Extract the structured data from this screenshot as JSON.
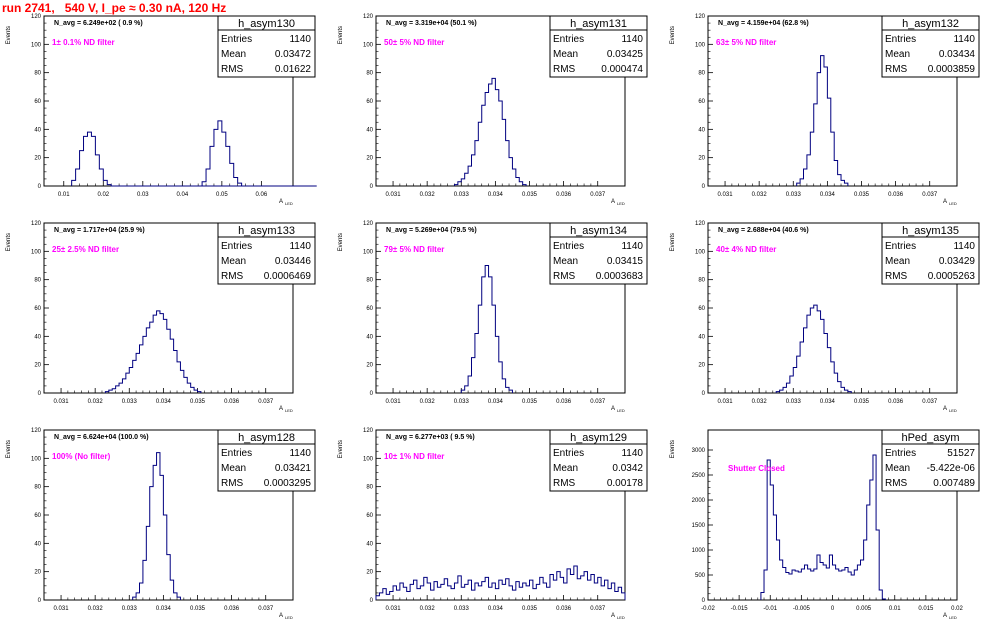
{
  "page": {
    "title": "run 2741,   540 V, I_pe ≈ 0.30 nA, 120 Hz",
    "colors": {
      "title": "#ff0000",
      "histogram": "#000080",
      "annotation": "#ff00ff",
      "frame": "#000000"
    },
    "y_axis_label": "Events",
    "x_axis_label": "A",
    "x_axis_label_sub": "LED",
    "stats_labels": {
      "entries": "Entries",
      "mean": "Mean",
      "rms": "RMS"
    }
  },
  "chart_data": [
    {
      "type": "histogram",
      "name": "h_asym130",
      "navg": "N_avg = 6.249e+02 ( 0.9 %)",
      "note": "1± 0.1% ND filter",
      "entries": "1140",
      "mean": "0.03472",
      "rms": "0.01622",
      "xlim": [
        0.005,
        0.068
      ],
      "ylim": [
        0,
        120
      ],
      "xticks": [
        {
          "v": 0.01,
          "t": "0.01"
        },
        {
          "v": 0.02,
          "t": "0.02"
        },
        {
          "v": 0.03,
          "t": "0.03"
        },
        {
          "v": 0.04,
          "t": "0.04"
        },
        {
          "v": 0.05,
          "t": "0.05"
        },
        {
          "v": 0.06,
          "t": "0.06"
        }
      ],
      "yticks": [
        {
          "v": 0,
          "t": "0"
        },
        {
          "v": 20,
          "t": "20"
        },
        {
          "v": 40,
          "t": "40"
        },
        {
          "v": 60,
          "t": "60"
        },
        {
          "v": 80,
          "t": "80"
        },
        {
          "v": 100,
          "t": "100"
        },
        {
          "v": 120,
          "t": "120"
        }
      ],
      "bin_start": 0.012,
      "bin_width": 0.001,
      "counts": [
        4,
        12,
        25,
        35,
        38,
        35,
        22,
        12,
        4,
        1,
        0,
        0,
        0,
        0,
        0,
        0,
        0,
        0,
        0,
        0,
        0,
        0,
        0,
        0,
        0,
        0,
        0,
        0,
        0,
        0,
        0,
        0,
        0,
        0,
        0,
        0,
        0,
        0,
        0,
        0,
        0,
        0,
        0,
        0,
        0,
        0,
        0,
        0,
        0,
        0,
        0,
        0,
        0,
        0,
        0,
        0,
        0,
        0,
        0,
        0,
        0,
        0
      ],
      "bins2_start": 0.045,
      "counts2": [
        3,
        12,
        28,
        40,
        46,
        38,
        28,
        16,
        6,
        2
      ]
    },
    {
      "type": "histogram",
      "name": "h_asym131",
      "navg": "N_avg = 3.319e+04 (50.1 %)",
      "note": "50± 5% ND filter",
      "entries": "1140",
      "mean": "0.03425",
      "rms": "0.000474",
      "xlim": [
        0.0305,
        0.0378
      ],
      "ylim": [
        0,
        120
      ],
      "xticks": [
        {
          "v": 0.031,
          "t": "0.031"
        },
        {
          "v": 0.032,
          "t": "0.032"
        },
        {
          "v": 0.033,
          "t": "0.033"
        },
        {
          "v": 0.034,
          "t": "0.034"
        },
        {
          "v": 0.035,
          "t": "0.035"
        },
        {
          "v": 0.036,
          "t": "0.036"
        },
        {
          "v": 0.037,
          "t": "0.037"
        }
      ],
      "yticks": [
        {
          "v": 0,
          "t": "0"
        },
        {
          "v": 20,
          "t": "20"
        },
        {
          "v": 40,
          "t": "40"
        },
        {
          "v": 60,
          "t": "60"
        },
        {
          "v": 80,
          "t": "80"
        },
        {
          "v": 100,
          "t": "100"
        },
        {
          "v": 120,
          "t": "120"
        }
      ],
      "bin_start": 0.0328,
      "bin_width": 0.0001,
      "counts": [
        1,
        3,
        5,
        9,
        14,
        22,
        32,
        45,
        57,
        66,
        72,
        76,
        68,
        60,
        47,
        32,
        20,
        12,
        6,
        3,
        1
      ]
    },
    {
      "type": "histogram",
      "name": "h_asym132",
      "navg": "N_avg = 4.159e+04 (62.8 %)",
      "note": "63± 5% ND filter",
      "entries": "1140",
      "mean": "0.03434",
      "rms": "0.0003859",
      "xlim": [
        0.0305,
        0.0378
      ],
      "ylim": [
        0,
        120
      ],
      "xticks": [
        {
          "v": 0.031,
          "t": "0.031"
        },
        {
          "v": 0.032,
          "t": "0.032"
        },
        {
          "v": 0.033,
          "t": "0.033"
        },
        {
          "v": 0.034,
          "t": "0.034"
        },
        {
          "v": 0.035,
          "t": "0.035"
        },
        {
          "v": 0.036,
          "t": "0.036"
        },
        {
          "v": 0.037,
          "t": "0.037"
        }
      ],
      "yticks": [
        {
          "v": 0,
          "t": "0"
        },
        {
          "v": 20,
          "t": "20"
        },
        {
          "v": 40,
          "t": "40"
        },
        {
          "v": 60,
          "t": "60"
        },
        {
          "v": 80,
          "t": "80"
        },
        {
          "v": 100,
          "t": "100"
        },
        {
          "v": 120,
          "t": "120"
        }
      ],
      "bin_start": 0.0331,
      "bin_width": 0.0001,
      "counts": [
        2,
        5,
        12,
        22,
        38,
        58,
        80,
        92,
        84,
        62,
        38,
        18,
        8,
        4,
        2
      ]
    },
    {
      "type": "histogram",
      "name": "h_asym133",
      "navg": "N_avg = 1.717e+04 (25.9 %)",
      "note": "25± 2.5% ND filter",
      "entries": "1140",
      "mean": "0.03446",
      "rms": "0.0006469",
      "xlim": [
        0.0305,
        0.0378
      ],
      "ylim": [
        0,
        120
      ],
      "xticks": [
        {
          "v": 0.031,
          "t": "0.031"
        },
        {
          "v": 0.032,
          "t": "0.032"
        },
        {
          "v": 0.033,
          "t": "0.033"
        },
        {
          "v": 0.034,
          "t": "0.034"
        },
        {
          "v": 0.035,
          "t": "0.035"
        },
        {
          "v": 0.036,
          "t": "0.036"
        },
        {
          "v": 0.037,
          "t": "0.037"
        }
      ],
      "yticks": [
        {
          "v": 0,
          "t": "0"
        },
        {
          "v": 20,
          "t": "20"
        },
        {
          "v": 40,
          "t": "40"
        },
        {
          "v": 60,
          "t": "60"
        },
        {
          "v": 80,
          "t": "80"
        },
        {
          "v": 100,
          "t": "100"
        },
        {
          "v": 120,
          "t": "120"
        }
      ],
      "bin_start": 0.0323,
      "bin_width": 0.0001,
      "counts": [
        1,
        2,
        3,
        5,
        7,
        10,
        14,
        18,
        23,
        28,
        34,
        40,
        46,
        50,
        55,
        58,
        56,
        52,
        45,
        38,
        30,
        22,
        16,
        11,
        7,
        4,
        2,
        1
      ]
    },
    {
      "type": "histogram",
      "name": "h_asym134",
      "navg": "N_avg = 5.269e+04 (79.5 %)",
      "note": "79± 5% ND filter",
      "entries": "1140",
      "mean": "0.03415",
      "rms": "0.0003683",
      "xlim": [
        0.0305,
        0.0378
      ],
      "ylim": [
        0,
        120
      ],
      "xticks": [
        {
          "v": 0.031,
          "t": "0.031"
        },
        {
          "v": 0.032,
          "t": "0.032"
        },
        {
          "v": 0.033,
          "t": "0.033"
        },
        {
          "v": 0.034,
          "t": "0.034"
        },
        {
          "v": 0.035,
          "t": "0.035"
        },
        {
          "v": 0.036,
          "t": "0.036"
        },
        {
          "v": 0.037,
          "t": "0.037"
        }
      ],
      "yticks": [
        {
          "v": 0,
          "t": "0"
        },
        {
          "v": 20,
          "t": "20"
        },
        {
          "v": 40,
          "t": "40"
        },
        {
          "v": 60,
          "t": "60"
        },
        {
          "v": 80,
          "t": "80"
        },
        {
          "v": 100,
          "t": "100"
        },
        {
          "v": 120,
          "t": "120"
        }
      ],
      "bin_start": 0.033,
      "bin_width": 0.0001,
      "counts": [
        2,
        5,
        12,
        25,
        42,
        62,
        82,
        90,
        82,
        62,
        40,
        22,
        10,
        4,
        2
      ]
    },
    {
      "type": "histogram",
      "name": "h_asym135",
      "navg": "N_avg = 2.688e+04 (40.6 %)",
      "note": "40± 4% ND filter",
      "entries": "1140",
      "mean": "0.03429",
      "rms": "0.0005263",
      "xlim": [
        0.0305,
        0.0378
      ],
      "ylim": [
        0,
        120
      ],
      "xticks": [
        {
          "v": 0.031,
          "t": "0.031"
        },
        {
          "v": 0.032,
          "t": "0.032"
        },
        {
          "v": 0.033,
          "t": "0.033"
        },
        {
          "v": 0.034,
          "t": "0.034"
        },
        {
          "v": 0.035,
          "t": "0.035"
        },
        {
          "v": 0.036,
          "t": "0.036"
        },
        {
          "v": 0.037,
          "t": "0.037"
        }
      ],
      "yticks": [
        {
          "v": 0,
          "t": "0"
        },
        {
          "v": 20,
          "t": "20"
        },
        {
          "v": 40,
          "t": "40"
        },
        {
          "v": 60,
          "t": "60"
        },
        {
          "v": 80,
          "t": "80"
        },
        {
          "v": 100,
          "t": "100"
        },
        {
          "v": 120,
          "t": "120"
        }
      ],
      "bin_start": 0.0325,
      "bin_width": 0.0001,
      "counts": [
        1,
        2,
        4,
        7,
        12,
        18,
        26,
        36,
        46,
        55,
        60,
        62,
        58,
        52,
        42,
        32,
        22,
        14,
        8,
        4,
        2,
        1
      ]
    },
    {
      "type": "histogram",
      "name": "h_asym128",
      "navg": "N_avg = 6.624e+04 (100.0 %)",
      "note": "100% (No filter)",
      "entries": "1140",
      "mean": "0.03421",
      "rms": "0.0003295",
      "xlim": [
        0.0305,
        0.0378
      ],
      "ylim": [
        0,
        120
      ],
      "xticks": [
        {
          "v": 0.031,
          "t": "0.031"
        },
        {
          "v": 0.032,
          "t": "0.032"
        },
        {
          "v": 0.033,
          "t": "0.033"
        },
        {
          "v": 0.034,
          "t": "0.034"
        },
        {
          "v": 0.035,
          "t": "0.035"
        },
        {
          "v": 0.036,
          "t": "0.036"
        },
        {
          "v": 0.037,
          "t": "0.037"
        }
      ],
      "yticks": [
        {
          "v": 0,
          "t": "0"
        },
        {
          "v": 20,
          "t": "20"
        },
        {
          "v": 40,
          "t": "40"
        },
        {
          "v": 60,
          "t": "60"
        },
        {
          "v": 80,
          "t": "80"
        },
        {
          "v": 100,
          "t": "100"
        },
        {
          "v": 120,
          "t": "120"
        }
      ],
      "bin_start": 0.0331,
      "bin_width": 0.0001,
      "counts": [
        2,
        5,
        12,
        28,
        52,
        80,
        95,
        104,
        88,
        60,
        32,
        14,
        5,
        2
      ]
    },
    {
      "type": "histogram",
      "name": "h_asym129",
      "navg": "N_avg = 6.277e+03 ( 9.5 %)",
      "note": "10± 1% ND filter",
      "entries": "1140",
      "mean": "0.0342",
      "rms": "0.00178",
      "xlim": [
        0.0305,
        0.0378
      ],
      "ylim": [
        0,
        120
      ],
      "xticks": [
        {
          "v": 0.031,
          "t": "0.031"
        },
        {
          "v": 0.032,
          "t": "0.032"
        },
        {
          "v": 0.033,
          "t": "0.033"
        },
        {
          "v": 0.034,
          "t": "0.034"
        },
        {
          "v": 0.035,
          "t": "0.035"
        },
        {
          "v": 0.036,
          "t": "0.036"
        },
        {
          "v": 0.037,
          "t": "0.037"
        }
      ],
      "yticks": [
        {
          "v": 0,
          "t": "0"
        },
        {
          "v": 20,
          "t": "20"
        },
        {
          "v": 40,
          "t": "40"
        },
        {
          "v": 60,
          "t": "60"
        },
        {
          "v": 80,
          "t": "80"
        },
        {
          "v": 100,
          "t": "100"
        },
        {
          "v": 120,
          "t": "120"
        }
      ],
      "bin_start": 0.0305,
      "bin_width": 0.0001,
      "counts": [
        3,
        5,
        8,
        4,
        6,
        10,
        7,
        12,
        9,
        6,
        11,
        14,
        8,
        10,
        16,
        12,
        7,
        13,
        9,
        11,
        15,
        10,
        8,
        12,
        17,
        9,
        11,
        14,
        7,
        12,
        10,
        13,
        16,
        9,
        12,
        8,
        14,
        11,
        15,
        10,
        7,
        13,
        9,
        12,
        10,
        14,
        8,
        11,
        16,
        12,
        9,
        18,
        14,
        20,
        16,
        12,
        22,
        18,
        24,
        15,
        17,
        20,
        14,
        18,
        12,
        16,
        10,
        14,
        8,
        12,
        6,
        9,
        5
      ]
    },
    {
      "type": "histogram",
      "name": "hPed_asym",
      "navg": "",
      "note": "Shutter Closed",
      "entries": "51527",
      "mean": "-5.422e-06",
      "rms": "0.007489",
      "xlim": [
        -0.02,
        0.02
      ],
      "ylim": [
        0,
        3400
      ],
      "xticks": [
        {
          "v": -0.02,
          "t": "-0.02"
        },
        {
          "v": -0.015,
          "t": "-0.015"
        },
        {
          "v": -0.01,
          "t": "-0.01"
        },
        {
          "v": -0.005,
          "t": "-0.005"
        },
        {
          "v": 0,
          "t": "0"
        },
        {
          "v": 0.005,
          "t": "0.005"
        },
        {
          "v": 0.01,
          "t": "0.01"
        },
        {
          "v": 0.015,
          "t": "0.015"
        },
        {
          "v": 0.02,
          "t": "0.02"
        }
      ],
      "yticks": [
        {
          "v": 0,
          "t": "0"
        },
        {
          "v": 500,
          "t": "500"
        },
        {
          "v": 1000,
          "t": "1000"
        },
        {
          "v": 1500,
          "t": "1500"
        },
        {
          "v": 2000,
          "t": "2000"
        },
        {
          "v": 2500,
          "t": "2500"
        },
        {
          "v": 3000,
          "t": "3000"
        }
      ],
      "bin_start": -0.0115,
      "bin_width": 0.0005,
      "counts": [
        150,
        600,
        2800,
        2300,
        1700,
        1200,
        800,
        650,
        550,
        520,
        600,
        580,
        560,
        620,
        700,
        620,
        580,
        620,
        900,
        750,
        700,
        640,
        900,
        700,
        620,
        580,
        600,
        650,
        560,
        500,
        600,
        700,
        800,
        1200,
        1900,
        2400,
        2900,
        1400,
        200,
        20
      ]
    }
  ]
}
